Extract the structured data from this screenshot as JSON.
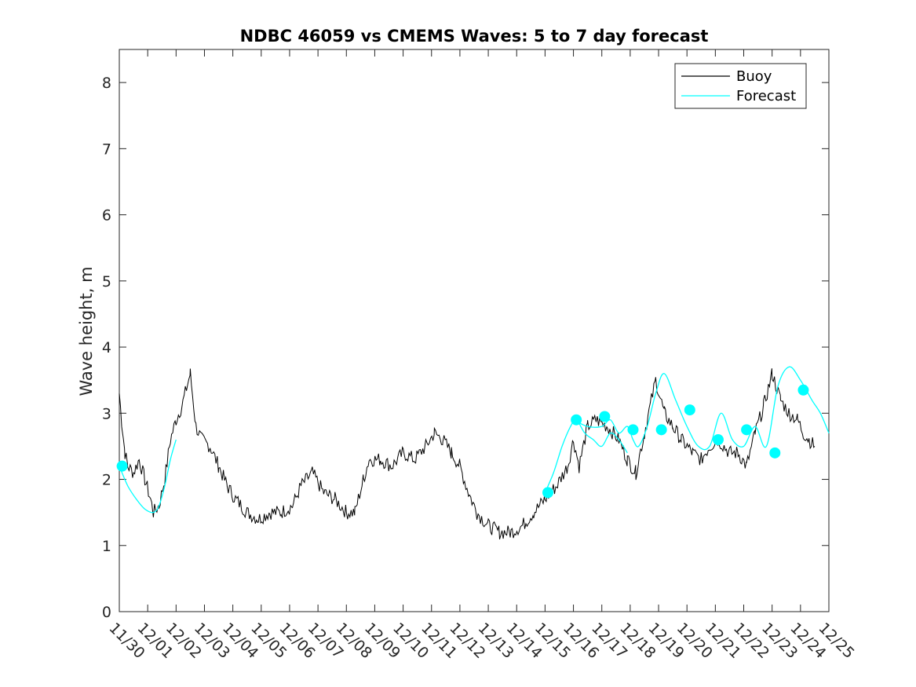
{
  "chart_data": {
    "type": "line",
    "title": "NDBC 46059 vs CMEMS Waves: 5 to 7 day forecast",
    "xlabel": "",
    "ylabel": "Wave height, m",
    "x_ticks": [
      "11/30",
      "12/01",
      "12/02",
      "12/03",
      "12/04",
      "12/05",
      "12/06",
      "12/07",
      "12/08",
      "12/09",
      "12/10",
      "12/11",
      "12/12",
      "12/13",
      "12/14",
      "12/15",
      "12/16",
      "12/17",
      "12/18",
      "12/19",
      "12/20",
      "12/21",
      "12/22",
      "12/23",
      "12/24",
      "12/25"
    ],
    "xlim": [
      0,
      25
    ],
    "ylim": [
      0,
      8.5
    ],
    "y_ticks": [
      0,
      1,
      2,
      3,
      4,
      5,
      6,
      7,
      8
    ],
    "grid": false,
    "legend_placement": "top-right",
    "colors": {
      "buoy": "#000000",
      "forecast": "#00ffff"
    },
    "series": [
      {
        "name": "Buoy",
        "x": [
          0,
          0.1,
          0.2,
          0.3,
          0.5,
          0.7,
          0.9,
          1.1,
          1.2,
          1.4,
          1.6,
          1.8,
          2.0,
          2.2,
          2.5,
          2.7,
          2.9,
          3.2,
          3.5,
          3.8,
          4.1,
          4.5,
          4.9,
          5.3,
          5.7,
          6.1,
          6.4,
          6.8,
          7.2,
          7.6,
          8.0,
          8.3,
          8.6,
          8.8,
          9.2,
          9.6,
          10.0,
          10.4,
          10.8,
          11.1,
          11.4,
          11.7,
          12.0,
          12.3,
          12.6,
          13.0,
          13.4,
          13.8,
          14.2,
          14.6,
          15.0,
          15.4,
          15.8,
          16.0,
          16.2,
          16.5,
          16.8,
          17.2,
          17.6,
          17.9,
          18.2,
          18.5,
          18.9,
          19.2,
          19.5,
          19.8,
          20.2,
          20.5,
          20.8,
          21.1,
          21.5,
          21.8,
          22.1,
          22.4,
          22.7,
          23.0,
          23.3,
          23.6,
          23.9,
          24.1,
          24.3,
          24.5
        ],
        "y": [
          3.3,
          2.8,
          2.4,
          2.2,
          2.1,
          2.3,
          2.0,
          1.7,
          1.5,
          1.6,
          2.0,
          2.6,
          2.9,
          3.1,
          3.6,
          2.8,
          2.6,
          2.5,
          2.2,
          1.9,
          1.7,
          1.5,
          1.4,
          1.5,
          1.5,
          1.6,
          1.9,
          2.1,
          1.8,
          1.7,
          1.5,
          1.5,
          2.0,
          2.3,
          2.3,
          2.2,
          2.4,
          2.3,
          2.5,
          2.7,
          2.6,
          2.4,
          2.2,
          1.8,
          1.5,
          1.3,
          1.2,
          1.2,
          1.3,
          1.5,
          1.7,
          1.9,
          2.2,
          2.6,
          2.2,
          2.8,
          2.9,
          2.8,
          2.6,
          2.3,
          2.1,
          2.7,
          3.5,
          3.0,
          2.8,
          2.6,
          2.4,
          2.3,
          2.5,
          2.6,
          2.4,
          2.4,
          2.2,
          2.7,
          3.1,
          3.6,
          3.2,
          3.0,
          2.9,
          2.7,
          2.6,
          2.5
        ]
      },
      {
        "name": "Forecast",
        "segments": [
          {
            "x": [
              0,
              0.3,
              0.6,
              0.9,
              1.2,
              1.4,
              1.6,
              1.8,
              2.0
            ],
            "y": [
              2.2,
              1.9,
              1.7,
              1.55,
              1.5,
              1.6,
              1.9,
              2.3,
              2.6
            ]
          },
          {
            "x": [
              15.0,
              15.3,
              15.6,
              15.9,
              16.1,
              16.4,
              16.7,
              17.0,
              17.3,
              17.6,
              17.9
            ],
            "y": [
              1.8,
              2.1,
              2.5,
              2.8,
              2.9,
              2.7,
              2.6,
              2.5,
              2.7,
              2.6,
              2.4
            ]
          },
          {
            "x": [
              16.0,
              16.5,
              17.0,
              17.3,
              17.6,
              17.9,
              18.1,
              18.3,
              18.6,
              18.9,
              19.2,
              19.6,
              20.0,
              20.4,
              20.8,
              21.2,
              21.6,
              22.0,
              22.4,
              22.8,
              23.2,
              23.6,
              24.0,
              24.4,
              24.7,
              25.0
            ],
            "y": [
              2.9,
              2.8,
              2.8,
              2.9,
              2.7,
              2.8,
              2.6,
              2.5,
              2.8,
              3.3,
              3.6,
              3.2,
              2.8,
              2.5,
              2.5,
              3.0,
              2.6,
              2.5,
              2.8,
              2.5,
              3.4,
              3.7,
              3.5,
              3.2,
              3.0,
              2.7
            ]
          }
        ]
      }
    ],
    "forecast_markers": {
      "x": [
        0.1,
        15.1,
        16.1,
        17.1,
        18.1,
        19.1,
        20.1,
        21.1,
        22.1,
        23.1,
        24.1
      ],
      "y": [
        2.2,
        1.8,
        2.9,
        2.95,
        2.75,
        2.75,
        3.05,
        2.6,
        2.75,
        2.4,
        3.35
      ]
    }
  }
}
